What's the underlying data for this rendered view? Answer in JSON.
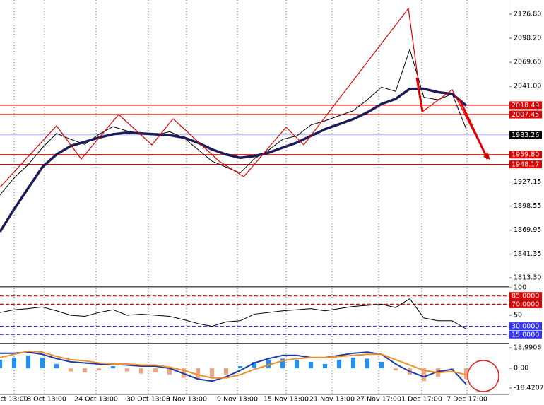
{
  "chart_data": [
    {
      "type": "line",
      "series": [
        {
          "color": "#000000",
          "width": 1,
          "values": [
            1912,
            1932,
            1948,
            1968,
            1985,
            1978,
            1972,
            1984,
            1993,
            1988,
            1985,
            1983,
            1987,
            1980,
            1966,
            1952,
            1945,
            1938,
            1955,
            1965,
            1978,
            1982,
            1995,
            2000,
            2006,
            2012,
            2025,
            2040,
            2035,
            2085,
            2028,
            2025,
            2032,
            1990
          ]
        },
        {
          "color": "#1c1c5a",
          "width": 3.5,
          "values": [
            1868,
            1895,
            1920,
            1945,
            1960,
            1970,
            1975,
            1980,
            1984,
            1986,
            1985,
            1984,
            1983,
            1980,
            1974,
            1966,
            1960,
            1956,
            1958,
            1962,
            1968,
            1974,
            1982,
            1990,
            1996,
            2002,
            2010,
            2020,
            2026,
            2038,
            2038,
            2034,
            2032,
            2018
          ]
        }
      ],
      "ylim": [
        1803.3,
        2143.6
      ],
      "yticks": [
        {
          "value": 2126.8,
          "label": "2126.80"
        },
        {
          "value": 2098.2,
          "label": "2098.20"
        },
        {
          "value": 2069.6,
          "label": "2069.60"
        },
        {
          "value": 2041,
          "label": "2041.00"
        },
        1927.15,
        1898.55,
        1869.95,
        1841.35,
        {
          "value": 1813.3,
          "label": "1813.30"
        }
      ],
      "levels": [
        2018.49,
        2007.45,
        {
          "value": 1959.8,
          "label": "1959.80"
        },
        1948.17
      ],
      "level_colors": [
        "#e00000",
        "#e00000",
        "#e00000",
        "#e00000"
      ],
      "last": 1983.26,
      "last_color": "#9aa0ff",
      "xticks": [
        {
          "value": 1,
          "label": "ct 13:00"
        },
        {
          "value": 3.15,
          "label": "18 Oct 13:00"
        },
        {
          "value": 6.8,
          "label": "24 Oct 13:00"
        },
        {
          "value": 10.5,
          "label": "30 Oct 13:00"
        },
        {
          "value": 13.2,
          "label": "3 Nov 13:00"
        },
        {
          "value": 16.8,
          "label": "9 Nov 13:00"
        },
        {
          "value": 20.25,
          "label": "15 Nov 13:00"
        },
        {
          "value": 23.5,
          "label": "21 Nov 13:00"
        },
        {
          "value": 26.8,
          "label": "27 Nov 17:00"
        },
        {
          "value": 29.85,
          "label": "1 Dec 17:00"
        },
        {
          "value": 33.05,
          "label": "7 Dec 17:00"
        }
      ]
    },
    {
      "type": "line",
      "series": [
        {
          "color": "#000000",
          "width": 1,
          "values": [
            55,
            60,
            62,
            65,
            58,
            50,
            48,
            55,
            60,
            50,
            52,
            50,
            48,
            42,
            35,
            30,
            38,
            40,
            52,
            55,
            58,
            60,
            62,
            58,
            62,
            66,
            68,
            70,
            64,
            80,
            45,
            40,
            40,
            25
          ]
        }
      ],
      "ylim": [
        0,
        100
      ],
      "yticks": [
        100,
        50
      ],
      "levels": [
        {
          "value": 85,
          "label": "85.0000"
        },
        {
          "value": 70,
          "label": "70.0000"
        },
        {
          "value": 30,
          "label": "30.0000"
        },
        {
          "value": 15,
          "label": "15.0000"
        }
      ],
      "level_colors": [
        "#e00000",
        "#e00000",
        "#3333ff",
        "#3333ff"
      ]
    },
    {
      "type": "bar",
      "values": [
        8,
        10,
        12,
        10,
        4,
        -3,
        -4,
        -2,
        2,
        -3,
        -5,
        -4,
        -6,
        -9,
        -10,
        -8,
        -6,
        2,
        6,
        8,
        9,
        8,
        6,
        4,
        8,
        10,
        9,
        6,
        -2,
        -6,
        -12,
        -8,
        -2,
        -10
      ],
      "color": "#1e90ff",
      "negative_color": "#f4a582",
      "series": [
        {
          "color": "#1a3aa8",
          "width": 2,
          "values": [
            14,
            14,
            15,
            13,
            9,
            6,
            5,
            4,
            4,
            3,
            2,
            2,
            0,
            -5,
            -10,
            -12,
            -8,
            -2,
            5,
            9,
            12,
            12,
            10,
            10,
            12,
            14,
            15,
            13,
            4,
            -3,
            -8,
            -3,
            -1,
            -15
          ]
        },
        {
          "color": "#f0902a",
          "width": 2,
          "values": [
            10,
            13,
            16,
            15,
            11,
            8,
            7,
            5,
            4,
            4,
            3,
            3,
            1,
            -2,
            -6,
            -9,
            -9,
            -6,
            -1,
            3,
            7,
            9,
            10,
            10,
            11,
            12,
            13,
            13,
            8,
            3,
            -2,
            -4,
            -3,
            -6
          ]
        }
      ],
      "ylim": [
        -24.3,
        22.4
      ],
      "yticks": [
        18.9906,
        {
          "value": 0,
          "label": "0.00"
        },
        -18.4207
      ]
    }
  ]
}
